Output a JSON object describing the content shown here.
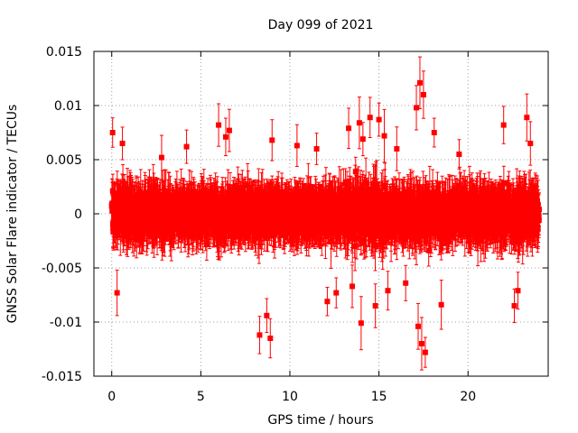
{
  "chart_data": {
    "type": "scatter",
    "title": "Day 099 of 2021",
    "xlabel": "GPS time / hours",
    "ylabel": "GNSS Solar Flare indicator / TECUs",
    "xlim": [
      -1,
      24.5
    ],
    "ylim": [
      -0.015,
      0.015
    ],
    "x_ticks": [
      0,
      5,
      10,
      15,
      20
    ],
    "x_tick_labels": [
      "0",
      "5",
      "10",
      "15",
      "20"
    ],
    "y_ticks": [
      -0.015,
      -0.01,
      -0.005,
      0,
      0.005,
      0.01,
      0.015
    ],
    "y_tick_labels": [
      "-0.015",
      "-0.01",
      "-0.005",
      "0",
      "0.005",
      "0.01",
      "0.015"
    ],
    "grid": true,
    "error_bars": true,
    "marker": "square",
    "series_color": "#ff0000",
    "series": [
      {
        "x": [
          0.05,
          0.3,
          0.6,
          2.8,
          4.2,
          6.0,
          6.4,
          6.6,
          8.3,
          8.7,
          8.9,
          9.0,
          10.4,
          11.5,
          12.1,
          12.6,
          13.3,
          13.5,
          13.9,
          14.0,
          14.1,
          14.5,
          14.8,
          15.0,
          15.3,
          15.5,
          16.0,
          16.5,
          17.1,
          17.2,
          17.3,
          17.4,
          17.5,
          17.6,
          18.1,
          18.5,
          19.5,
          22.0,
          22.6,
          22.8,
          23.3,
          23.5
        ],
        "y": [
          0.0075,
          -0.0073,
          0.0065,
          0.0052,
          0.0062,
          0.0082,
          0.0071,
          0.0077,
          -0.0112,
          -0.0094,
          -0.0115,
          0.0068,
          0.0063,
          0.006,
          -0.0081,
          -0.0073,
          0.0079,
          -0.0067,
          0.0084,
          -0.0101,
          0.0069,
          0.0089,
          -0.0085,
          0.0087,
          0.0072,
          -0.0071,
          0.006,
          -0.0064,
          0.0098,
          -0.0104,
          0.0121,
          -0.012,
          0.011,
          -0.0128,
          0.0075,
          -0.0084,
          0.0055,
          0.0082,
          -0.0085,
          -0.0071,
          0.0089,
          0.0065
        ]
      }
    ]
  }
}
